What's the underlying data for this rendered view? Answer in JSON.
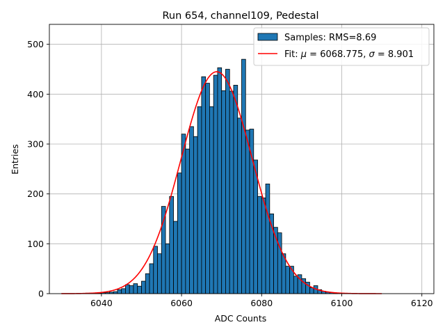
{
  "chart_data": {
    "type": "bar",
    "title": "Run 654, channel109, Pedestal",
    "xlabel": "ADC Counts",
    "ylabel": "Entries",
    "xlim": [
      6027,
      6123
    ],
    "ylim": [
      0,
      540
    ],
    "xticks": [
      6040,
      6060,
      6080,
      6100,
      6120
    ],
    "yticks": [
      0,
      100,
      200,
      300,
      400,
      500
    ],
    "grid": true,
    "legend_position": "top-right",
    "bin_width": 1,
    "bins": [
      [
        6036,
        1
      ],
      [
        6037,
        1
      ],
      [
        6038,
        1
      ],
      [
        6039,
        1
      ],
      [
        6040,
        2
      ],
      [
        6041,
        2
      ],
      [
        6042,
        3
      ],
      [
        6043,
        4
      ],
      [
        6044,
        8
      ],
      [
        6045,
        10
      ],
      [
        6046,
        18
      ],
      [
        6047,
        16
      ],
      [
        6048,
        20
      ],
      [
        6049,
        15
      ],
      [
        6050,
        25
      ],
      [
        6051,
        40
      ],
      [
        6052,
        60
      ],
      [
        6053,
        95
      ],
      [
        6054,
        80
      ],
      [
        6055,
        175
      ],
      [
        6056,
        100
      ],
      [
        6057,
        195
      ],
      [
        6058,
        145
      ],
      [
        6059,
        242
      ],
      [
        6060,
        320
      ],
      [
        6061,
        290
      ],
      [
        6062,
        335
      ],
      [
        6063,
        315
      ],
      [
        6064,
        375
      ],
      [
        6065,
        435
      ],
      [
        6066,
        422
      ],
      [
        6067,
        375
      ],
      [
        6068,
        438
      ],
      [
        6069,
        453
      ],
      [
        6070,
        407
      ],
      [
        6071,
        450
      ],
      [
        6072,
        406
      ],
      [
        6073,
        418
      ],
      [
        6074,
        352
      ],
      [
        6075,
        470
      ],
      [
        6076,
        328
      ],
      [
        6077,
        330
      ],
      [
        6078,
        268
      ],
      [
        6079,
        195
      ],
      [
        6080,
        192
      ],
      [
        6081,
        220
      ],
      [
        6082,
        160
      ],
      [
        6083,
        133
      ],
      [
        6084,
        122
      ],
      [
        6085,
        80
      ],
      [
        6086,
        55
      ],
      [
        6087,
        55
      ],
      [
        6088,
        35
      ],
      [
        6089,
        38
      ],
      [
        6090,
        30
      ],
      [
        6091,
        23
      ],
      [
        6092,
        12
      ],
      [
        6093,
        16
      ],
      [
        6094,
        8
      ],
      [
        6095,
        5
      ],
      [
        6096,
        3
      ],
      [
        6097,
        2
      ],
      [
        6098,
        1
      ]
    ],
    "fit": {
      "mu": 6068.775,
      "sigma": 8.901,
      "amplitude": 445,
      "x_range": [
        6030,
        6110
      ],
      "color": "#ff0000"
    },
    "bar_color": "#1f77b4",
    "bar_edge_color": "#000000",
    "series": [
      {
        "name": "Samples: RMS=8.69",
        "kind": "histogram"
      },
      {
        "name": "Fit",
        "kind": "line",
        "label_prefix": "Fit: ",
        "mu_symbol": "μ",
        "sigma_symbol": "σ",
        "mu_text": " = 6068.775, ",
        "sigma_text": " = 8.901"
      }
    ]
  }
}
